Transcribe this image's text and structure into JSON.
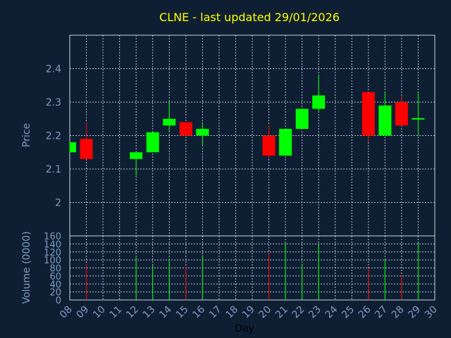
{
  "chart_data": {
    "type": "candlestick",
    "title": "CLNE - last updated 29/01/2026",
    "xlabel": "Day",
    "price_label": "Price",
    "volume_label": "Volume (0000)",
    "x_ticks": [
      "08",
      "09",
      "10",
      "11",
      "12",
      "13",
      "14",
      "15",
      "16",
      "17",
      "18",
      "19",
      "20",
      "21",
      "22",
      "23",
      "24",
      "25",
      "26",
      "27",
      "28",
      "29",
      "30"
    ],
    "price_yticks": [
      2,
      2.1,
      2.2,
      2.3,
      2.4
    ],
    "price_ylim": [
      1.9,
      2.5
    ],
    "volume_yticks": [
      0,
      20,
      40,
      60,
      80,
      100,
      120,
      140,
      160
    ],
    "volume_ylim": [
      0,
      160
    ],
    "grid": true,
    "up_color": "#00ff00",
    "down_color": "#ff0000",
    "candles": [
      {
        "day": "08",
        "open": 2.15,
        "high": 2.18,
        "low": 2.15,
        "close": 2.18,
        "volume": 0
      },
      {
        "day": "09",
        "open": 2.19,
        "high": 2.24,
        "low": 2.13,
        "close": 2.13,
        "volume": 92
      },
      {
        "day": "12",
        "open": 2.13,
        "high": 2.15,
        "low": 2.08,
        "close": 2.15,
        "volume": 106
      },
      {
        "day": "13",
        "open": 2.15,
        "high": 2.21,
        "low": 2.15,
        "close": 2.21,
        "volume": 86
      },
      {
        "day": "14",
        "open": 2.23,
        "high": 2.3,
        "low": 2.21,
        "close": 2.25,
        "volume": 98
      },
      {
        "day": "15",
        "open": 2.24,
        "high": 2.24,
        "low": 2.2,
        "close": 2.2,
        "volume": 82
      },
      {
        "day": "16",
        "open": 2.2,
        "high": 2.24,
        "low": 2.17,
        "close": 2.22,
        "volume": 112
      },
      {
        "day": "20",
        "open": 2.2,
        "high": 2.23,
        "low": 2.13,
        "close": 2.14,
        "volume": 118
      },
      {
        "day": "21",
        "open": 2.14,
        "high": 2.22,
        "low": 2.14,
        "close": 2.22,
        "volume": 145
      },
      {
        "day": "22",
        "open": 2.22,
        "high": 2.28,
        "low": 2.22,
        "close": 2.28,
        "volume": 90
      },
      {
        "day": "23",
        "open": 2.28,
        "high": 2.38,
        "low": 2.27,
        "close": 2.32,
        "volume": 140
      },
      {
        "day": "26",
        "open": 2.33,
        "high": 2.33,
        "low": 2.18,
        "close": 2.2,
        "volume": 80
      },
      {
        "day": "27",
        "open": 2.2,
        "high": 2.33,
        "low": 2.2,
        "close": 2.29,
        "volume": 100
      },
      {
        "day": "28",
        "open": 2.3,
        "high": 2.32,
        "low": 2.23,
        "close": 2.23,
        "volume": 62
      },
      {
        "day": "29",
        "open": 2.25,
        "high": 2.33,
        "low": 2.2,
        "close": 2.25,
        "volume": 143
      }
    ]
  }
}
